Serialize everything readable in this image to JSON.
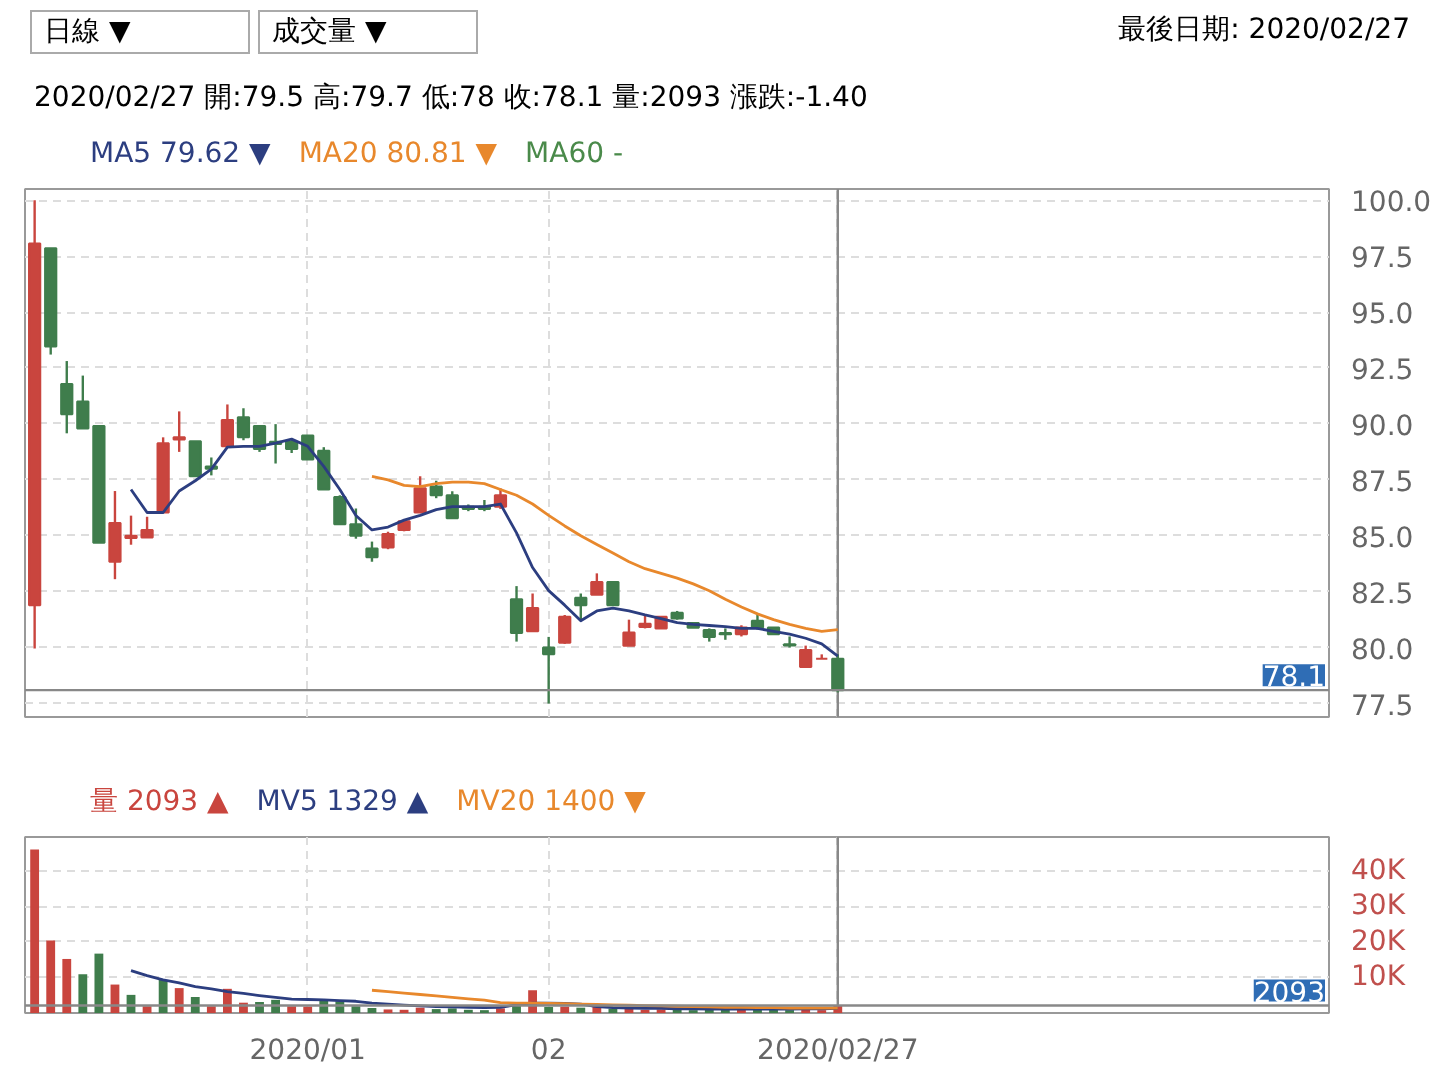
{
  "chart_data": [
    {
      "type": "candlestick",
      "title": "最後日期: 2020/02/27",
      "subtitle": "2020/02/27 開:79.5 高:79.7 低:78 收:78.1 量:2093 漲跌:-1.40",
      "annotations": [
        "日線 ▼",
        "成交量 ▼"
      ],
      "categories": [
        null,
        null,
        null,
        null,
        null,
        null,
        null,
        null,
        null,
        null,
        null,
        null,
        null,
        null,
        null,
        null,
        null,
        null,
        null,
        null,
        null,
        null,
        null,
        null,
        null,
        null,
        null,
        null,
        null,
        null,
        null,
        null,
        null,
        null,
        null,
        null,
        null,
        null,
        null,
        null,
        null,
        null,
        null,
        null,
        null,
        null,
        null,
        null,
        null,
        null,
        null
      ],
      "ohlc": [
        [
          81.9,
          100,
          79.96,
          98.06
        ],
        [
          97.85,
          97.85,
          93.1,
          93.46
        ],
        [
          91.78,
          92.81,
          89.58,
          90.43
        ],
        [
          91.0,
          92.16,
          89.79,
          89.79
        ],
        [
          89.91,
          89.91,
          84.69,
          84.69
        ],
        [
          83.84,
          87.0,
          83.06,
          85.57
        ],
        [
          84.9,
          85.9,
          84.6,
          85.0
        ],
        [
          84.92,
          85.85,
          84.92,
          85.26
        ],
        [
          86.04,
          89.4,
          86.04,
          89.14
        ],
        [
          89.3,
          90.56,
          88.75,
          89.4
        ],
        [
          89.22,
          89.22,
          87.66,
          87.66
        ],
        [
          88.1,
          88.5,
          87.7,
          88.0
        ],
        [
          89.0,
          90.87,
          89.0,
          90.17
        ],
        [
          90.3,
          90.7,
          89.27,
          89.4
        ],
        [
          89.91,
          89.91,
          88.75,
          88.88
        ],
        [
          89.2,
          89.99,
          88.23,
          89.1
        ],
        [
          89.19,
          89.32,
          88.7,
          88.88
        ],
        [
          89.48,
          89.48,
          88.41,
          88.41
        ],
        [
          88.8,
          88.96,
          87.07,
          87.07
        ],
        [
          86.73,
          86.81,
          85.52,
          85.52
        ],
        [
          85.52,
          86.22,
          84.87,
          85.0
        ],
        [
          84.43,
          84.74,
          83.84,
          84.04
        ],
        [
          84.48,
          85.18,
          84.4,
          85.08
        ],
        [
          85.26,
          85.7,
          85.2,
          85.65
        ],
        [
          86.04,
          87.66,
          86.04,
          87.12
        ],
        [
          87.2,
          87.46,
          86.68,
          86.81
        ],
        [
          86.81,
          86.99,
          85.78,
          85.78
        ],
        [
          86.3,
          86.4,
          86.1,
          86.2
        ],
        [
          86.3,
          86.6,
          86.1,
          86.2
        ],
        [
          86.3,
          87.12,
          86.2,
          86.81
        ],
        [
          82.16,
          82.75,
          80.27,
          80.66
        ],
        [
          80.73,
          82.42,
          80.73,
          81.77
        ],
        [
          80.01,
          80.48,
          77.5,
          79.7
        ],
        [
          80.22,
          81.46,
          80.17,
          81.38
        ],
        [
          82.23,
          82.42,
          81.25,
          81.9
        ],
        [
          82.36,
          83.32,
          82.36,
          82.93
        ],
        [
          82.93,
          82.93,
          81.9,
          81.9
        ],
        [
          80.09,
          81.25,
          80.09,
          80.68
        ],
        [
          80.92,
          81.46,
          80.86,
          81.07
        ],
        [
          80.86,
          81.4,
          80.86,
          81.38
        ],
        [
          81.56,
          81.64,
          81.25,
          81.3
        ],
        [
          81.1,
          81.1,
          80.89,
          80.89
        ],
        [
          80.79,
          80.86,
          80.27,
          80.48
        ],
        [
          80.65,
          80.86,
          80.35,
          80.6
        ],
        [
          80.6,
          81.0,
          80.5,
          80.9
        ],
        [
          81.2,
          81.5,
          80.8,
          80.9
        ],
        [
          80.9,
          80.9,
          80.6,
          80.6
        ],
        [
          80.15,
          80.5,
          80.0,
          80.1
        ],
        [
          79.13,
          80.09,
          79.13,
          79.9
        ],
        [
          79.5,
          79.7,
          79.5,
          79.5
        ],
        [
          79.5,
          79.7,
          78.0,
          78.1
        ]
      ],
      "colors": [
        "#c9453e",
        "#3f7d4c",
        "#3f7d4c",
        "#3f7d4c",
        "#3f7d4c",
        "#c9453e",
        "#c9453e",
        "#c9453e",
        "#c9453e",
        "#c9453e",
        "#3f7d4c",
        "#3f7d4c",
        "#c9453e",
        "#3f7d4c",
        "#3f7d4c",
        "#3f7d4c",
        "#3f7d4c",
        "#3f7d4c",
        "#3f7d4c",
        "#3f7d4c",
        "#3f7d4c",
        "#3f7d4c",
        "#c9453e",
        "#c9453e",
        "#c9453e",
        "#3f7d4c",
        "#3f7d4c",
        "#3f7d4c",
        "#3f7d4c",
        "#c9453e",
        "#3f7d4c",
        "#c9453e",
        "#3f7d4c",
        "#c9453e",
        "#3f7d4c",
        "#c9453e",
        "#3f7d4c",
        "#c9453e",
        "#c9453e",
        "#c9453e",
        "#3f7d4c",
        "#3f7d4c",
        "#3f7d4c",
        "#3f7d4c",
        "#c9453e",
        "#3f7d4c",
        "#3f7d4c",
        "#3f7d4c",
        "#c9453e",
        "#c9453e",
        "#3f7d4c"
      ],
      "series": [
        {
          "name": "MA5 79.62 ▼",
          "type": "line",
          "color": "#2c3e80",
          "values": [
            null,
            null,
            null,
            null,
            null,
            null,
            87.07,
            86.04,
            86.04,
            87.0,
            87.46,
            87.98,
            88.96,
            89.0,
            89.0,
            89.14,
            89.32,
            89.0,
            88.1,
            87.07,
            85.91,
            85.26,
            85.39,
            85.7,
            85.91,
            86.17,
            86.3,
            86.3,
            86.3,
            86.42,
            85.13,
            83.58,
            82.55,
            81.9,
            81.2,
            81.64,
            81.77,
            81.64,
            81.46,
            81.3,
            81.12,
            81.04,
            80.99,
            80.94,
            80.86,
            80.86,
            80.73,
            80.6,
            80.42,
            80.17,
            79.62
          ]
        },
        {
          "name": "MA20 80.81 ▼",
          "type": "line",
          "color": "#e8882c",
          "values": [
            null,
            null,
            null,
            null,
            null,
            null,
            null,
            null,
            null,
            null,
            null,
            null,
            null,
            null,
            null,
            null,
            null,
            null,
            null,
            null,
            null,
            87.66,
            87.5,
            87.25,
            87.2,
            87.33,
            87.4,
            87.4,
            87.33,
            87.07,
            86.81,
            86.42,
            85.91,
            85.44,
            85.0,
            84.61,
            84.23,
            83.84,
            83.53,
            83.32,
            83.11,
            82.85,
            82.54,
            82.16,
            81.82,
            81.51,
            81.25,
            81.04,
            80.86,
            80.73,
            80.81
          ]
        },
        {
          "name": "MA60 -",
          "type": "line",
          "color": "#4a8a4a",
          "values": [
            null,
            null,
            null,
            null,
            null,
            null,
            null,
            null,
            null,
            null,
            null,
            null,
            null,
            null,
            null,
            null,
            null,
            null,
            null,
            null,
            null,
            null,
            null,
            null,
            null,
            null,
            null,
            null,
            null,
            null,
            null,
            null,
            null,
            null,
            null,
            null,
            null,
            null,
            null,
            null,
            null,
            null,
            null,
            null,
            null,
            null,
            null,
            null,
            null,
            null,
            null
          ]
        }
      ],
      "ylim": [
        76.9,
        100.5
      ],
      "yticks": [
        77.5,
        {
          "value": 80,
          "label": "80.0"
        },
        82.5,
        {
          "value": 85,
          "label": "85.0"
        },
        87.5,
        {
          "value": 90,
          "label": "90.0"
        },
        92.5,
        {
          "value": 95,
          "label": "95.0"
        },
        97.5,
        {
          "value": 100,
          "label": "100.0"
        }
      ],
      "ref_lines": [
        {
          "axis": "y",
          "value": 78.1,
          "label": "78.1",
          "color": "#888888"
        }
      ],
      "grid": true,
      "legend": "top"
    },
    {
      "type": "bar",
      "categories": [
        null,
        null,
        null,
        null,
        null,
        null,
        null,
        null,
        null,
        null,
        null,
        null,
        null,
        null,
        null,
        null,
        null,
        "2020/01",
        null,
        null,
        null,
        null,
        null,
        null,
        null,
        null,
        null,
        null,
        null,
        null,
        null,
        null,
        "02",
        null,
        null,
        null,
        null,
        null,
        null,
        null,
        null,
        null,
        null,
        null,
        null,
        null,
        null,
        null,
        null,
        null,
        "2020/02/27"
      ],
      "series": [
        {
          "name": "量 2093 ▲",
          "type": "bar",
          "color": "#c9453e",
          "colors": [
            "#c9453e",
            "#c9453e",
            "#c9453e",
            "#3f7d4c",
            "#3f7d4c",
            "#c9453e",
            "#3f7d4c",
            "#c9453e",
            "#3f7d4c",
            "#c9453e",
            "#3f7d4c",
            "#c9453e",
            "#c9453e",
            "#c9453e",
            "#3f7d4c",
            "#3f7d4c",
            "#c9453e",
            "#c9453e",
            "#3f7d4c",
            "#3f7d4c",
            "#3f7d4c",
            "#3f7d4c",
            "#c9453e",
            "#c9453e",
            "#c9453e",
            "#3f7d4c",
            "#3f7d4c",
            "#3f7d4c",
            "#3f7d4c",
            "#c9453e",
            "#3f7d4c",
            "#c9453e",
            "#3f7d4c",
            "#c9453e",
            "#3f7d4c",
            "#c9453e",
            "#3f7d4c",
            "#c9453e",
            "#c9453e",
            "#c9453e",
            "#3f7d4c",
            "#3f7d4c",
            "#3f7d4c",
            "#3f7d4c",
            "#c9453e",
            "#3f7d4c",
            "#3f7d4c",
            "#3f7d4c",
            "#c9453e",
            "#c9453e",
            "#c9453e"
          ],
          "values": [
            46000,
            20400,
            15200,
            10900,
            16700,
            8000,
            5100,
            1900,
            9300,
            7000,
            4500,
            1900,
            6800,
            2900,
            3100,
            3700,
            1900,
            1800,
            3700,
            3300,
            1900,
            1400,
            1000,
            900,
            1500,
            1100,
            1300,
            900,
            800,
            1300,
            2200,
            6400,
            1700,
            1800,
            1500,
            2100,
            1200,
            1500,
            900,
            1000,
            1000,
            800,
            1100,
            900,
            1000,
            1200,
            1100,
            800,
            1500,
            800,
            2093
          ]
        },
        {
          "name": "MV5 1329 ▲",
          "type": "line",
          "color": "#2c3e80",
          "values": [
            null,
            null,
            null,
            null,
            null,
            null,
            11900,
            10500,
            9300,
            8500,
            7400,
            6800,
            6000,
            5500,
            4900,
            4400,
            3900,
            3800,
            3700,
            3500,
            3300,
            2800,
            2500,
            2200,
            2000,
            1800,
            1700,
            1600,
            1500,
            1600,
            2300,
            2800,
            2800,
            2700,
            2500,
            1800,
            1500,
            1400,
            1300,
            1300,
            1200,
            1200,
            1100,
            1100,
            1100,
            1100,
            1100,
            1100,
            1200,
            1200,
            1329
          ]
        },
        {
          "name": "MV20 1400 ▼",
          "type": "line",
          "color": "#e8882c",
          "values": [
            null,
            null,
            null,
            null,
            null,
            null,
            null,
            null,
            null,
            null,
            null,
            null,
            null,
            null,
            null,
            null,
            null,
            null,
            null,
            null,
            null,
            6400,
            6000,
            5600,
            5200,
            4800,
            4400,
            4000,
            3600,
            2900,
            2800,
            2800,
            2700,
            2600,
            2500,
            2400,
            2300,
            2200,
            2100,
            2000,
            1900,
            1800,
            1700,
            1600,
            1600,
            1500,
            1500,
            1400,
            1400,
            1400,
            1400
          ]
        }
      ],
      "ylim": [
        0,
        49500
      ],
      "yticks": [
        {
          "value": 10000,
          "label": "10K"
        },
        {
          "value": 20000,
          "label": "20K"
        },
        {
          "value": 30000,
          "label": "30K"
        },
        {
          "value": 40000,
          "label": "40K"
        }
      ],
      "ref_lines": [
        {
          "axis": "y",
          "value": 2093,
          "label": "2093",
          "color": "#888888"
        },
        {
          "axis": "x",
          "value": "2020/02/27",
          "color": "#888888"
        }
      ],
      "grid": true,
      "legend": "top"
    }
  ]
}
